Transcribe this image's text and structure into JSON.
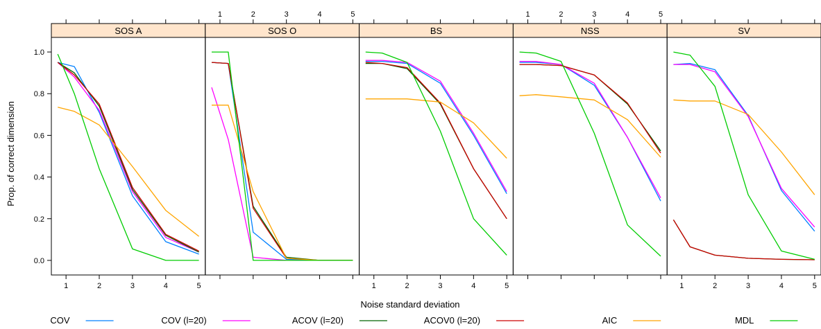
{
  "chart_data": {
    "type": "line",
    "xlabel": "Noise standard deviation",
    "ylabel": "Prop. of correct dimension",
    "x": [
      0.75,
      1.25,
      2,
      3,
      4,
      5
    ],
    "x_ticks": [
      "1",
      "2",
      "3",
      "4",
      "5"
    ],
    "xlim": [
      0.6,
      5.15
    ],
    "y_ticks": [
      "0.0",
      "0.2",
      "0.4",
      "0.6",
      "0.8",
      "1.0"
    ],
    "ylim": [
      -0.07,
      1.07
    ],
    "legend_position": "bottom",
    "grid": false,
    "colors": {
      "COV": "#0080ff",
      "COV (l=20)": "#ff00ff",
      "ACOV (l=20)": "#006400",
      "ACOV0 (l=20)": "#cc0000",
      "AIC": "#ffa500",
      "MDL": "#00cc00",
      "strip": "#ffe5cc"
    },
    "legend": [
      "COV",
      "COV (l=20)",
      "ACOV (l=20)",
      "ACOV0 (l=20)",
      "AIC",
      "MDL"
    ],
    "panels": [
      {
        "name": "SOS A",
        "series": [
          {
            "name": "COV",
            "values": [
              0.95,
              0.93,
              0.71,
              0.31,
              0.09,
              0.03
            ]
          },
          {
            "name": "COV (l=20)",
            "values": [
              0.95,
              0.88,
              0.72,
              0.33,
              0.11,
              0.04
            ]
          },
          {
            "name": "ACOV (l=20)",
            "values": [
              0.95,
              0.9,
              0.74,
              0.34,
              0.12,
              0.04
            ]
          },
          {
            "name": "ACOV0 (l=20)",
            "values": [
              0.95,
              0.89,
              0.75,
              0.35,
              0.125,
              0.045
            ]
          },
          {
            "name": "AIC",
            "values": [
              0.735,
              0.715,
              0.65,
              0.45,
              0.24,
              0.115
            ]
          },
          {
            "name": "MDL",
            "values": [
              0.99,
              0.8,
              0.44,
              0.055,
              0.0,
              0.0
            ]
          }
        ]
      },
      {
        "name": "SOS O",
        "series": [
          {
            "name": "COV",
            "values": [
              0.95,
              0.945,
              0.135,
              0.005,
              0.0,
              0.0
            ]
          },
          {
            "name": "COV (l=20)",
            "values": [
              0.83,
              0.58,
              0.015,
              0.0,
              0.0,
              0.0
            ]
          },
          {
            "name": "ACOV (l=20)",
            "values": [
              0.95,
              0.945,
              0.26,
              0.015,
              0.0,
              0.0
            ]
          },
          {
            "name": "ACOV0 (l=20)",
            "values": [
              0.95,
              0.945,
              0.25,
              0.01,
              0.0,
              0.0
            ]
          },
          {
            "name": "AIC",
            "values": [
              0.745,
              0.745,
              0.33,
              0.01,
              0.0,
              0.0
            ]
          },
          {
            "name": "MDL",
            "values": [
              1.0,
              1.0,
              0.0,
              0.0,
              0.0,
              0.0
            ]
          }
        ]
      },
      {
        "name": "BS",
        "series": [
          {
            "name": "COV",
            "values": [
              0.955,
              0.955,
              0.945,
              0.85,
              0.6,
              0.32
            ]
          },
          {
            "name": "COV (l=20)",
            "values": [
              0.96,
              0.96,
              0.95,
              0.86,
              0.61,
              0.33
            ]
          },
          {
            "name": "ACOV (l=20)",
            "values": [
              0.945,
              0.945,
              0.92,
              0.75,
              0.44,
              0.2
            ]
          },
          {
            "name": "ACOV0 (l=20)",
            "values": [
              0.95,
              0.945,
              0.925,
              0.755,
              0.44,
              0.2
            ]
          },
          {
            "name": "AIC",
            "values": [
              0.775,
              0.775,
              0.775,
              0.76,
              0.66,
              0.49
            ]
          },
          {
            "name": "MDL",
            "values": [
              1.0,
              0.995,
              0.95,
              0.62,
              0.2,
              0.025
            ]
          }
        ]
      },
      {
        "name": "NSS",
        "series": [
          {
            "name": "COV",
            "values": [
              0.95,
              0.95,
              0.94,
              0.84,
              0.59,
              0.285
            ]
          },
          {
            "name": "COV (l=20)",
            "values": [
              0.955,
              0.955,
              0.94,
              0.85,
              0.59,
              0.3
            ]
          },
          {
            "name": "ACOV (l=20)",
            "values": [
              0.94,
              0.94,
              0.935,
              0.89,
              0.75,
              0.525
            ]
          },
          {
            "name": "ACOV0 (l=20)",
            "values": [
              0.94,
              0.94,
              0.935,
              0.89,
              0.755,
              0.515
            ]
          },
          {
            "name": "AIC",
            "values": [
              0.79,
              0.795,
              0.785,
              0.77,
              0.675,
              0.495
            ]
          },
          {
            "name": "MDL",
            "values": [
              1.0,
              0.995,
              0.955,
              0.61,
              0.17,
              0.02
            ]
          }
        ]
      },
      {
        "name": "SV",
        "series": [
          {
            "name": "COV",
            "values": [
              0.94,
              0.945,
              0.915,
              0.695,
              0.335,
              0.14
            ]
          },
          {
            "name": "COV (l=20)",
            "values": [
              0.94,
              0.94,
              0.905,
              0.69,
              0.345,
              0.16
            ]
          },
          {
            "name": "ACOV (l=20)",
            "values": [
              0.195,
              0.065,
              0.025,
              0.01,
              0.005,
              0.003
            ]
          },
          {
            "name": "ACOV0 (l=20)",
            "values": [
              0.195,
              0.065,
              0.025,
              0.01,
              0.005,
              0.003
            ]
          },
          {
            "name": "AIC",
            "values": [
              0.77,
              0.765,
              0.765,
              0.7,
              0.52,
              0.315
            ]
          },
          {
            "name": "MDL",
            "values": [
              1.0,
              0.985,
              0.835,
              0.315,
              0.045,
              0.005
            ]
          }
        ]
      }
    ]
  }
}
